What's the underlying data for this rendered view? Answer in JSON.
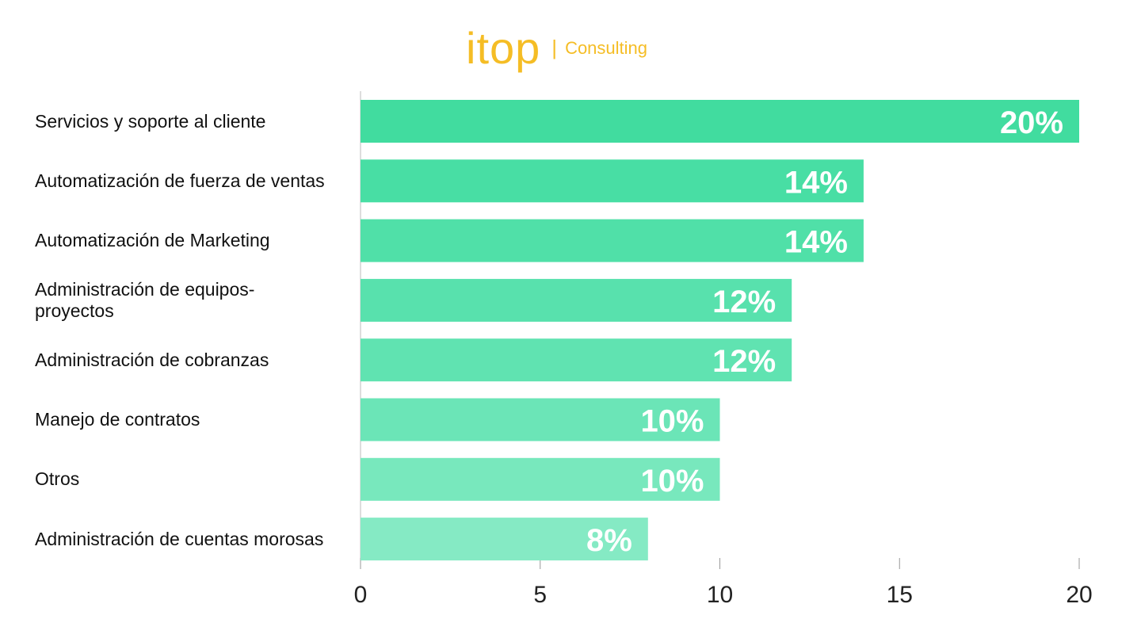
{
  "logo": {
    "brand": "itop",
    "tagline": "Consulting"
  },
  "chart_data": {
    "type": "bar",
    "orientation": "horizontal",
    "categories": [
      "Servicios y soporte al cliente",
      "Automatización de fuerza de ventas",
      "Automatización de Marketing",
      "Administración de equipos-proyectos",
      "Administración de cobranzas",
      "Manejo de contratos",
      "Otros",
      "Administración de cuentas morosas"
    ],
    "values": [
      20,
      14,
      14,
      12,
      12,
      10,
      10,
      8
    ],
    "value_labels": [
      "20%",
      "14%",
      "14%",
      "12%",
      "12%",
      "10%",
      "10%",
      "8%"
    ],
    "colors": [
      "#41dc9f",
      "#48dea4",
      "#50e0a8",
      "#58e1ad",
      "#60e3b1",
      "#6be5b7",
      "#78e8bd",
      "#85eac4"
    ],
    "xlim": [
      0,
      20
    ],
    "xticks": [
      0,
      5,
      10,
      15,
      20
    ]
  }
}
